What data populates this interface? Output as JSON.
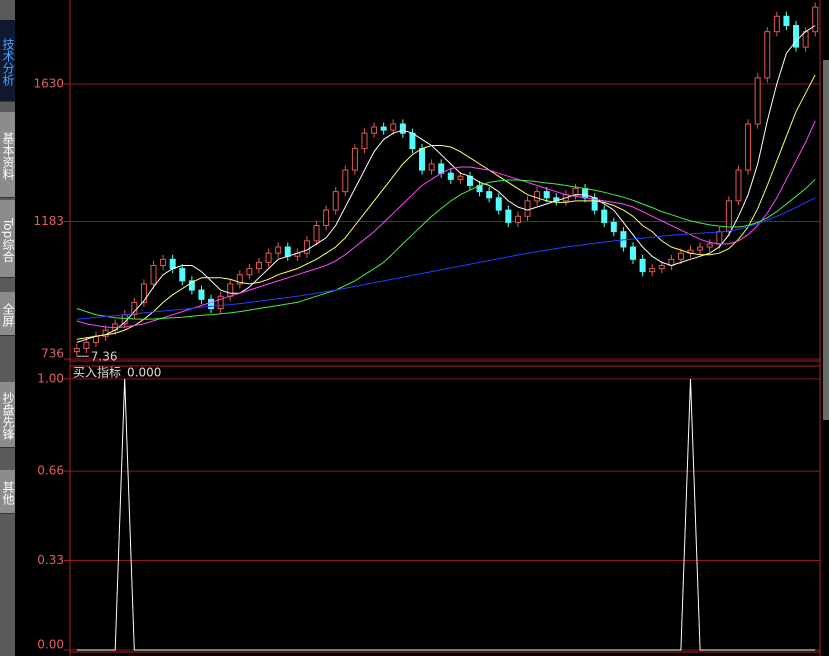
{
  "sidebar": {
    "tabs": [
      "技术分析",
      "基本资料",
      "Top综合",
      "全屏",
      "抄盘先锋",
      "其他"
    ],
    "active": 0
  },
  "chart_data": [
    {
      "type": "candlestick",
      "annotation": "7.36",
      "categories": [
        null,
        null,
        null,
        null,
        null,
        null,
        null,
        null,
        null,
        null,
        null,
        null,
        null,
        null,
        null,
        null,
        null,
        null,
        null,
        null,
        null,
        null,
        null,
        null,
        null,
        null,
        null,
        null,
        null,
        null,
        null,
        null,
        null,
        null,
        null,
        null,
        null,
        null,
        null,
        null,
        null,
        null,
        null,
        null,
        null,
        null,
        null,
        null,
        null,
        null,
        null,
        null,
        null,
        null,
        null,
        null,
        null,
        null,
        null,
        null,
        null,
        null,
        null,
        null,
        null,
        null,
        null,
        null,
        null,
        null,
        null,
        null,
        null,
        null,
        null,
        null,
        null,
        null
      ],
      "open": [
        760,
        770,
        790,
        810,
        830,
        850,
        880,
        920,
        980,
        1040,
        1060,
        1030,
        990,
        960,
        930,
        900,
        940,
        980,
        1010,
        1030,
        1050,
        1080,
        1100,
        1070,
        1080,
        1120,
        1170,
        1220,
        1280,
        1350,
        1420,
        1470,
        1490,
        1480,
        1500,
        1470,
        1420,
        1350,
        1370,
        1340,
        1320,
        1330,
        1300,
        1280,
        1260,
        1220,
        1180,
        1200,
        1250,
        1280,
        1260,
        1250,
        1270,
        1290,
        1260,
        1220,
        1180,
        1150,
        1100,
        1060,
        1020,
        1030,
        1040,
        1060,
        1080,
        1090,
        1100,
        1110,
        1150,
        1250,
        1350,
        1500,
        1650,
        1800,
        1850,
        1820,
        1750,
        1800
      ],
      "high": [
        785,
        805,
        825,
        845,
        865,
        895,
        935,
        995,
        1055,
        1075,
        1075,
        1045,
        1005,
        975,
        945,
        955,
        995,
        1025,
        1045,
        1065,
        1095,
        1115,
        1115,
        1095,
        1135,
        1185,
        1235,
        1295,
        1365,
        1435,
        1485,
        1505,
        1505,
        1515,
        1515,
        1485,
        1435,
        1385,
        1385,
        1355,
        1345,
        1345,
        1315,
        1295,
        1275,
        1235,
        1215,
        1265,
        1295,
        1295,
        1275,
        1285,
        1305,
        1305,
        1275,
        1235,
        1195,
        1165,
        1115,
        1075,
        1045,
        1055,
        1075,
        1095,
        1105,
        1115,
        1125,
        1165,
        1265,
        1365,
        1515,
        1665,
        1815,
        1865,
        1865,
        1835,
        1815,
        1895
      ],
      "low": [
        745,
        755,
        775,
        795,
        815,
        835,
        865,
        905,
        965,
        1025,
        1015,
        975,
        945,
        915,
        885,
        885,
        925,
        965,
        995,
        1015,
        1035,
        1065,
        1055,
        1055,
        1065,
        1105,
        1155,
        1205,
        1265,
        1335,
        1405,
        1455,
        1465,
        1465,
        1455,
        1405,
        1335,
        1335,
        1325,
        1305,
        1305,
        1285,
        1265,
        1245,
        1205,
        1165,
        1165,
        1185,
        1235,
        1245,
        1235,
        1235,
        1255,
        1245,
        1205,
        1165,
        1135,
        1085,
        1045,
        1005,
        1005,
        1015,
        1025,
        1045,
        1065,
        1075,
        1085,
        1095,
        1135,
        1235,
        1335,
        1485,
        1635,
        1785,
        1805,
        1735,
        1735,
        1785
      ],
      "close": [
        770,
        790,
        810,
        830,
        850,
        880,
        920,
        980,
        1040,
        1060,
        1030,
        990,
        960,
        930,
        900,
        940,
        980,
        1010,
        1030,
        1050,
        1080,
        1100,
        1070,
        1080,
        1120,
        1170,
        1220,
        1280,
        1350,
        1420,
        1470,
        1490,
        1480,
        1500,
        1470,
        1420,
        1350,
        1370,
        1340,
        1320,
        1330,
        1300,
        1280,
        1260,
        1220,
        1180,
        1200,
        1250,
        1280,
        1260,
        1250,
        1270,
        1290,
        1260,
        1220,
        1180,
        1150,
        1100,
        1060,
        1020,
        1030,
        1040,
        1060,
        1080,
        1090,
        1100,
        1110,
        1150,
        1250,
        1350,
        1500,
        1650,
        1800,
        1850,
        1820,
        1750,
        1800,
        1880
      ],
      "up_color": "#e05a50",
      "down_color": "#54fcfc",
      "series": [
        {
          "color": "#ffffff",
          "values": [
            790,
            800,
            810,
            815,
            830,
            855,
            890,
            925,
            970,
            1010,
            1030,
            1040,
            1040,
            1020,
            990,
            960,
            950,
            950,
            970,
            1000,
            1030,
            1060,
            1070,
            1080,
            1090,
            1110,
            1130,
            1170,
            1230,
            1290,
            1350,
            1410,
            1450,
            1470,
            1480,
            1470,
            1450,
            1430,
            1400,
            1370,
            1340,
            1330,
            1310,
            1300,
            1280,
            1250,
            1230,
            1220,
            1230,
            1240,
            1250,
            1260,
            1270,
            1270,
            1260,
            1240,
            1220,
            1180,
            1140,
            1100,
            1070,
            1050,
            1040,
            1050,
            1060,
            1070,
            1080,
            1100,
            1140,
            1200,
            1270,
            1370,
            1510,
            1630,
            1730,
            1770,
            1800,
            1820
          ]
        },
        {
          "color": "#ffff66",
          "values": [
            800,
            805,
            810,
            815,
            820,
            830,
            845,
            865,
            890,
            920,
            945,
            965,
            985,
            1000,
            1000,
            1000,
            995,
            985,
            980,
            985,
            995,
            1010,
            1020,
            1030,
            1045,
            1060,
            1080,
            1100,
            1130,
            1170,
            1210,
            1250,
            1290,
            1330,
            1370,
            1400,
            1420,
            1430,
            1430,
            1425,
            1410,
            1390,
            1370,
            1350,
            1330,
            1310,
            1290,
            1270,
            1260,
            1250,
            1245,
            1245,
            1250,
            1250,
            1250,
            1245,
            1235,
            1220,
            1200,
            1170,
            1150,
            1120,
            1100,
            1090,
            1080,
            1075,
            1075,
            1080,
            1095,
            1125,
            1165,
            1225,
            1300,
            1380,
            1460,
            1540,
            1600,
            1660
          ]
        },
        {
          "color": "#ff44ff",
          "values": [
            860,
            850,
            845,
            840,
            838,
            840,
            845,
            850,
            860,
            870,
            880,
            890,
            900,
            910,
            920,
            930,
            940,
            950,
            960,
            970,
            980,
            990,
            1000,
            1010,
            1020,
            1030,
            1040,
            1055,
            1075,
            1100,
            1125,
            1150,
            1180,
            1210,
            1240,
            1270,
            1300,
            1320,
            1340,
            1355,
            1360,
            1360,
            1355,
            1350,
            1340,
            1330,
            1320,
            1310,
            1300,
            1290,
            1280,
            1270,
            1265,
            1260,
            1255,
            1250,
            1245,
            1240,
            1230,
            1215,
            1200,
            1185,
            1170,
            1155,
            1140,
            1125,
            1115,
            1110,
            1110,
            1120,
            1140,
            1170,
            1210,
            1260,
            1320,
            1380,
            1440,
            1510
          ]
        },
        {
          "color": "#44ee44",
          "values": [
            900,
            890,
            880,
            875,
            870,
            868,
            866,
            865,
            866,
            868,
            870,
            872,
            875,
            878,
            880,
            883,
            886,
            890,
            895,
            900,
            905,
            910,
            915,
            920,
            930,
            940,
            950,
            960,
            975,
            990,
            1010,
            1030,
            1050,
            1080,
            1110,
            1140,
            1170,
            1200,
            1225,
            1250,
            1270,
            1285,
            1300,
            1310,
            1315,
            1318,
            1318,
            1316,
            1312,
            1308,
            1305,
            1300,
            1295,
            1290,
            1285,
            1278,
            1270,
            1262,
            1252,
            1240,
            1228,
            1215,
            1205,
            1195,
            1185,
            1178,
            1172,
            1168,
            1165,
            1165,
            1170,
            1180,
            1195,
            1215,
            1240,
            1265,
            1290,
            1320
          ]
        },
        {
          "color": "#2040ff",
          "values": [
            865,
            868,
            871,
            874,
            877,
            880,
            883,
            886,
            889,
            892,
            895,
            898,
            901,
            904,
            907,
            910,
            913,
            916,
            920,
            924,
            928,
            932,
            936,
            940,
            945,
            950,
            955,
            960,
            966,
            972,
            978,
            984,
            990,
            996,
            1002,
            1008,
            1014,
            1020,
            1026,
            1032,
            1038,
            1044,
            1050,
            1056,
            1062,
            1068,
            1074,
            1080,
            1085,
            1090,
            1095,
            1100,
            1104,
            1108,
            1112,
            1116,
            1120,
            1123,
            1126,
            1129,
            1132,
            1135,
            1138,
            1141,
            1143,
            1145,
            1147,
            1149,
            1152,
            1158,
            1166,
            1176,
            1188,
            1200,
            1214,
            1228,
            1244,
            1260
          ]
        }
      ],
      "ylim": [
        736,
        1903
      ],
      "yticks": [
        736,
        1183,
        1630
      ],
      "grid": true,
      "grid_color": "#8a1a1a"
    },
    {
      "type": "line",
      "title": "买入指标",
      "value_text": "0.000",
      "categories": [
        null,
        null,
        null,
        null,
        null,
        null,
        null,
        null,
        null,
        null,
        null,
        null,
        null,
        null,
        null,
        null,
        null,
        null,
        null,
        null,
        null,
        null,
        null,
        null,
        null,
        null,
        null,
        null,
        null,
        null,
        null,
        null,
        null,
        null,
        null,
        null,
        null,
        null,
        null,
        null,
        null,
        null,
        null,
        null,
        null,
        null,
        null,
        null,
        null,
        null,
        null,
        null,
        null,
        null,
        null,
        null,
        null,
        null,
        null,
        null,
        null,
        null,
        null,
        null,
        null,
        null,
        null,
        null,
        null,
        null,
        null,
        null,
        null,
        null,
        null,
        null,
        null,
        null
      ],
      "series": [
        {
          "color": "#ffffff",
          "values": [
            0,
            0,
            0,
            0,
            0,
            1,
            0,
            0,
            0,
            0,
            0,
            0,
            0,
            0,
            0,
            0,
            0,
            0,
            0,
            0,
            0,
            0,
            0,
            0,
            0,
            0,
            0,
            0,
            0,
            0,
            0,
            0,
            0,
            0,
            0,
            0,
            0,
            0,
            0,
            0,
            0,
            0,
            0,
            0,
            0,
            0,
            0,
            0,
            0,
            0,
            0,
            0,
            0,
            0,
            0,
            0,
            0,
            0,
            0,
            0,
            0,
            0,
            0,
            0,
            1,
            0,
            0,
            0,
            0,
            0,
            0,
            0,
            0,
            0,
            0,
            0,
            0,
            0
          ]
        }
      ],
      "ylim": [
        0,
        1.044
      ],
      "yticks": [
        {
          "value": 0,
          "label": "0.00"
        },
        0.33,
        0.66,
        {
          "value": 1,
          "label": "1.00"
        }
      ],
      "grid": true,
      "grid_color": "#8a1a1a"
    }
  ]
}
